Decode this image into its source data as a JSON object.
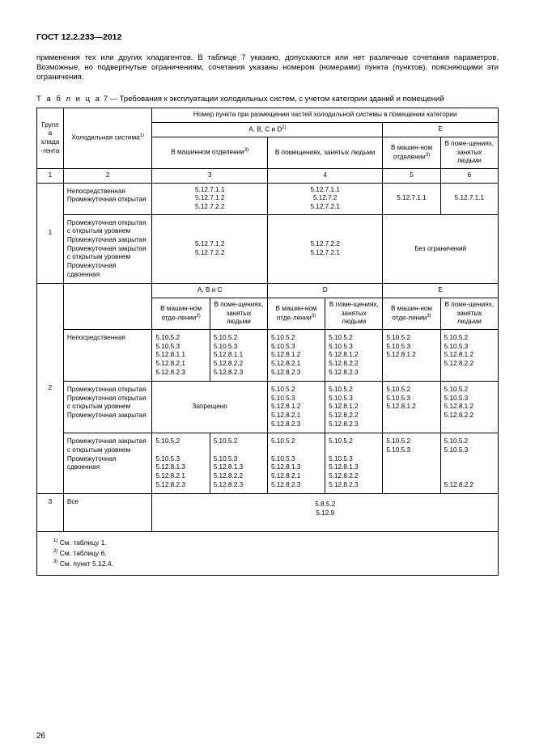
{
  "gost": "ГОСТ 12.2.233—2012",
  "para": "применения тех или других хладагентов. В таблице 7 указано, допускаются или нет различные сочетания параметров. Возможные, но подвергнутые ограничениям, сочетания указаны номером (номерами) пункта (пунктов), поясняющими эти ограничения.",
  "caption_sp": "Т а б л и ц а",
  "caption_rest": " 7 — Требования к эксплуатации холодильных систем, с учетом категории зданий и помещений",
  "h_group": "Группа хлада-гента",
  "h_system": "Холодильная система",
  "h_top": "Номер пункта при размещении частей холодильной системы в помещении категории",
  "h_abcd": "А, В, С и D",
  "h_e": "E",
  "h_machine": "В машинном отделении",
  "h_machine_narrow": "В машин-ном отделении",
  "h_people": "В помещениях, занятых людьми",
  "h_people_narrow": "В поме-щениях, занятых людьми",
  "num1": "1",
  "num2": "2",
  "num3": "3",
  "num4": "4",
  "num5": "5",
  "num6": "6",
  "r1a_sys": "Непосредственная Промежуточная открытая",
  "r1a_c3": "5.12.7.1.1\n5.12.7.1.2\n5.12.7.2.2",
  "r1a_c4": "5.12.7.1.1\n5.12.7.2\n5.12.7.2.1",
  "r1a_c5": "5.12.7.1.1",
  "r1a_c6": "5.12.7.1.1",
  "r1b_sys": "Промежуточная открытая с открытым уровнем\nПромежуточная закрытая\nПромежуточная закрытая с открытым уровнем\nПромежуточная сдвоенная",
  "r1b_c3": "5.12.7.1.2\n5.12.7.2.2",
  "r1b_c4": "5.12.7.2.2\n5.12.7.2.1",
  "r1b_e": "Без ограничений",
  "h_abc2": "А, В и С",
  "h_d2": "D",
  "h_e2": "E",
  "sub_machine": "В машин-ном отде-лении",
  "sub_people": "В поме-щениях, занятых людьми",
  "r2a_sys": "Непосредственная",
  "r2a_1": "5.10.5.2\n5.10.5.3\n5.12.8.1.1\n5.12.8.2.1\n5.12.8.2.3",
  "r2a_2": "5.10.5.2\n5.10.5.3\n5.12.8.1.1\n5.12.8.2.2\n5.12.8.2.3",
  "r2a_3": "5.10.5.2\n5.10.5.3\n5.12.8.1.2\n5.12.8.2.1\n5.12.8.2.3",
  "r2a_4": "5.10.5.2\n5.10.5.3\n5.12.8.1.2\n5.12.8.2.2\n5.12.8.2.3",
  "r2a_5": "5.10.5.2\n5.10.5.3\n5.12.8.1.2",
  "r2a_6": "5.10.5.2\n5.10.5.3\n5.12.8.1.2\n5.12.8.2.2",
  "r2b_sys": "Промежуточная открытая\nПромежуточная открытая с открытым уровнем\nПромежуточная закрытая",
  "r2b_left": "Запрещено",
  "r2b_3": "5.10.5.2\n5.10.5.3\n5.12.8.1.2\n5.12.8.2.1\n5.12.8.2.3",
  "r2b_4": "5.10.5.2\n5.10.5.3\n5.12.8.1.2\n5.12.8.2.2\n5.12.8.2.3",
  "r2b_5": "5.10.5.2\n5.10.5.3\n5.12.8.1.2",
  "r2b_6": "5.10.5.2\n5.10.5.3\n5.12.8.1.2\n5.12.8.2.2",
  "r2c_sys": "Промежуточная закрытая с открытым уровнем\nПромежуточная сдвоенная",
  "r2c_1": "5.10.5.2\n\n5.10.5.3\n5.12.8.1.3\n5.12.8.2.1\n5.12.8.2.3",
  "r2c_2": "5.10.5.2\n\n5.10.5.3\n5.12.8.1.3\n5.12.8.2.2\n5.12.8.2.3",
  "r2c_3": "5.10.5.2\n\n5.10.5.3\n5.12.8.1.3\n5.12.8.2.1\n5.12.8.2.3",
  "r2c_4": "5.10.5.2\n\n5.10.5.3\n5.12.8.1.3\n5.12.8.2.2\n5.12.8.2.3",
  "r2c_5": "5.10.5.2\n5.10.5.3",
  "r2c_6": "5.10.5.2\n5.10.5.3\n\n\n\n5.12.8.2.2",
  "r3_sys": "Все",
  "r3_val": "5.8.5.2\n5.12.9",
  "fn1": " См. таблицу 1.",
  "fn2": " См. таблицу 6.",
  "fn3": " См. пункт 5.12.4.",
  "sup1": "1)",
  "sup2": "2)",
  "sup3": "3)",
  "pagenum": "26"
}
